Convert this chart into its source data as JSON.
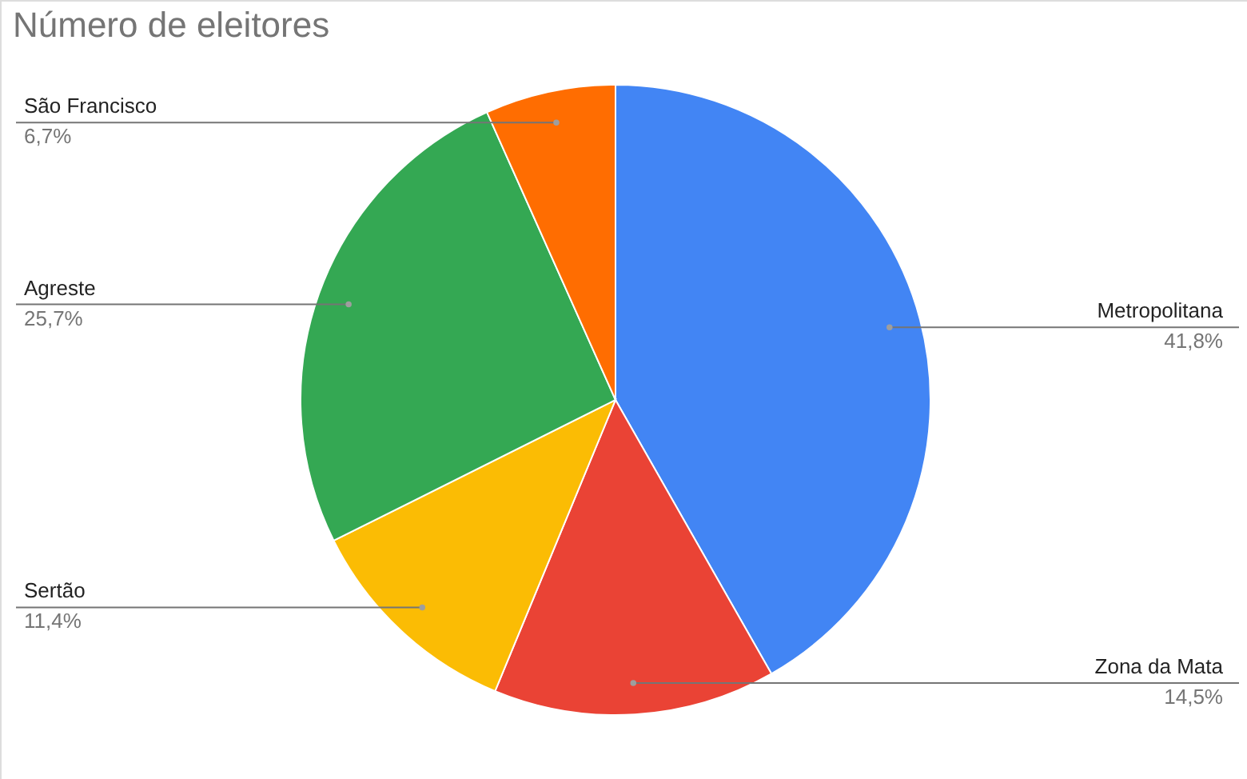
{
  "chart_data": {
    "type": "pie",
    "title": "Número de eleitores",
    "categories": [
      "Metropolitana",
      "Zona da Mata",
      "Sertão",
      "Agreste",
      "São Francisco"
    ],
    "values": [
      41.8,
      14.5,
      11.4,
      25.7,
      6.7
    ],
    "colors": [
      "#4285f4",
      "#ea4335",
      "#fbbc04",
      "#34a853",
      "#ff6d01"
    ],
    "value_labels": [
      "41,8%",
      "14,5%",
      "11,4%",
      "25,7%",
      "6,7%"
    ]
  }
}
